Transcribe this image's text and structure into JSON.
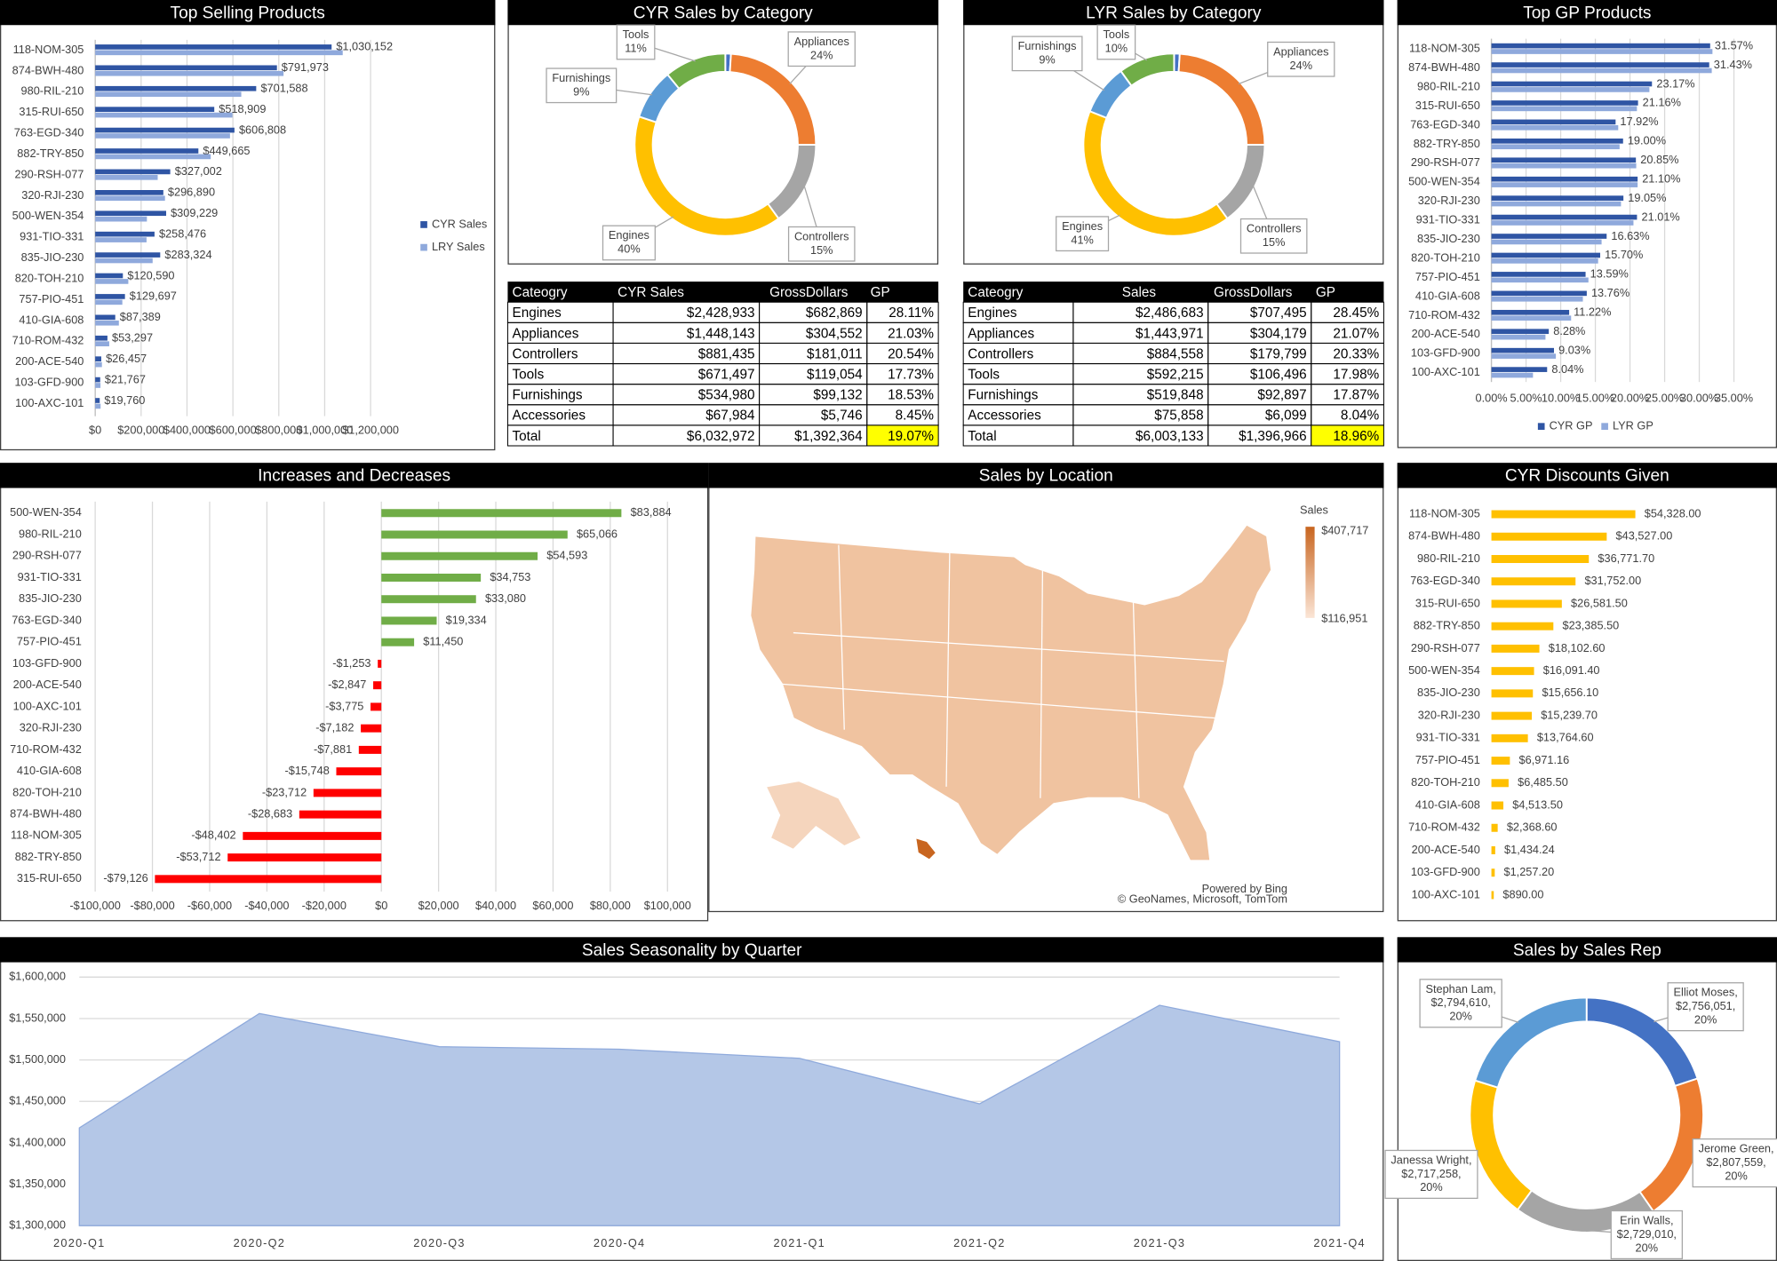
{
  "chart_data": [
    {
      "type": "bar",
      "orientation": "horizontal",
      "title": "Top Selling Products",
      "categories": [
        "118-NOM-305",
        "874-BWH-480",
        "980-RIL-210",
        "315-RUI-650",
        "763-EGD-340",
        "882-TRY-850",
        "290-RSH-077",
        "320-RJI-230",
        "500-WEN-354",
        "931-TIO-331",
        "835-JIO-230",
        "820-TOH-210",
        "757-PIO-451",
        "410-GIA-608",
        "710-ROM-432",
        "200-ACE-540",
        "103-GFD-900",
        "100-AXC-101"
      ],
      "series": [
        {
          "name": "CYR Sales",
          "color": "#2f55a4",
          "values": [
            1030152,
            791973,
            701588,
            518909,
            606808,
            449665,
            327002,
            296890,
            309229,
            258476,
            283324,
            120590,
            129697,
            87389,
            53297,
            26457,
            21767,
            19760
          ],
          "value_labels": [
            "$1,030,152",
            "$791,973",
            "$701,588",
            "$518,909",
            "$606,808",
            "$449,665",
            "$327,002",
            "$296,890",
            "$309,229",
            "$258,476",
            "$283,324",
            "$120,590",
            "$129,697",
            "$87,389",
            "$53,297",
            "$26,457",
            "$21,767",
            "$19,760"
          ]
        },
        {
          "name": "LRY Sales",
          "color": "#8fa9dc",
          "values": [
            1078554,
            820656,
            636522,
            598035,
            587474,
            503377,
            272409,
            304072,
            225345,
            223723,
            250244,
            144302,
            118247,
            103137,
            61178,
            29304,
            23020,
            23535
          ]
        }
      ],
      "xlim": [
        0,
        1200000
      ],
      "xticks": [
        {
          "value": 0,
          "label": "$0"
        },
        {
          "value": 200000,
          "label": "$200,000"
        },
        {
          "value": 400000,
          "label": "$400,000"
        },
        {
          "value": 600000,
          "label": "$600,000"
        },
        {
          "value": 800000,
          "label": "$800,000"
        },
        {
          "value": 1000000,
          "label": "$1,000,000"
        },
        {
          "value": 1200000,
          "label": "$1,200,000"
        }
      ],
      "grid": true,
      "legend": "right"
    },
    {
      "type": "pie",
      "donut": true,
      "title": "CYR Sales by Category",
      "categories": [
        null,
        "Appliances",
        "Controllers",
        "Engines",
        "Furnishings",
        "Tools"
      ],
      "values": [
        1,
        24,
        15,
        40,
        9,
        11
      ],
      "value_labels": [
        null,
        "24%",
        "15%",
        "40%",
        "9%",
        "11%"
      ],
      "colors": [
        "#4472c4",
        "#ed7d31",
        "#a5a5a5",
        "#ffc000",
        "#5b9bd5",
        "#70ad47"
      ]
    },
    {
      "type": "pie",
      "donut": true,
      "title": "LYR Sales by Category",
      "categories": [
        null,
        "Appliances",
        "Controllers",
        "Engines",
        "Furnishings",
        "Tools"
      ],
      "values": [
        1,
        24,
        15,
        41,
        9,
        10
      ],
      "value_labels": [
        null,
        "24%",
        "15%",
        "41%",
        "9%",
        "10%"
      ],
      "colors": [
        "#4472c4",
        "#ed7d31",
        "#a5a5a5",
        "#ffc000",
        "#5b9bd5",
        "#70ad47"
      ]
    },
    {
      "type": "bar",
      "orientation": "horizontal",
      "title": "Top GP Products",
      "categories": [
        "118-NOM-305",
        "874-BWH-480",
        "980-RIL-210",
        "315-RUI-650",
        "763-EGD-340",
        "882-TRY-850",
        "290-RSH-077",
        "500-WEN-354",
        "320-RJI-230",
        "931-TIO-331",
        "835-JIO-230",
        "820-TOH-210",
        "757-PIO-451",
        "410-GIA-608",
        "710-ROM-432",
        "200-ACE-540",
        "103-GFD-900",
        "100-AXC-101"
      ],
      "series": [
        {
          "name": "CYR GP",
          "color": "#2f55a4",
          "values": [
            31.57,
            31.43,
            23.17,
            21.16,
            17.92,
            19.0,
            20.85,
            21.1,
            19.05,
            21.01,
            16.63,
            15.7,
            13.59,
            13.76,
            11.22,
            8.28,
            9.03,
            8.04
          ],
          "value_labels": [
            "31.57%",
            "31.43%",
            "23.17%",
            "21.16%",
            "17.92%",
            "19.00%",
            "20.85%",
            "21.10%",
            "19.05%",
            "21.01%",
            "16.63%",
            "15.70%",
            "13.59%",
            "13.76%",
            "11.22%",
            "8.28%",
            "9.03%",
            "8.04%"
          ]
        },
        {
          "name": "LYR GP",
          "color": "#8fa9dc",
          "values": [
            31.9,
            31.8,
            22.8,
            21.0,
            18.3,
            18.5,
            20.9,
            21.1,
            18.7,
            20.5,
            15.9,
            15.4,
            14.0,
            13.2,
            11.5,
            7.8,
            9.3,
            6.0
          ]
        }
      ],
      "xlim": [
        0,
        35
      ],
      "xticks": [
        {
          "value": 0,
          "label": "0.00%"
        },
        {
          "value": 5,
          "label": "5.00%"
        },
        {
          "value": 10,
          "label": "10.00%"
        },
        {
          "value": 15,
          "label": "15.00%"
        },
        {
          "value": 20,
          "label": "20.00%"
        },
        {
          "value": 25,
          "label": "25.00%"
        },
        {
          "value": 30,
          "label": "30.00%"
        },
        {
          "value": 35,
          "label": "35.00%"
        }
      ],
      "grid": true,
      "legend": "bottom"
    },
    {
      "type": "bar",
      "orientation": "horizontal",
      "title": "Increases and Decreases",
      "categories": [
        "500-WEN-354",
        "980-RIL-210",
        "290-RSH-077",
        "931-TIO-331",
        "835-JIO-230",
        "763-EGD-340",
        "757-PIO-451",
        "103-GFD-900",
        "200-ACE-540",
        "100-AXC-101",
        "320-RJI-230",
        "710-ROM-432",
        "410-GIA-608",
        "820-TOH-210",
        "874-BWH-480",
        "118-NOM-305",
        "882-TRY-850",
        "315-RUI-650"
      ],
      "values": [
        83884,
        65066,
        54593,
        34753,
        33080,
        19334,
        11450,
        -1253,
        -2847,
        -3775,
        -7182,
        -7881,
        -15748,
        -23712,
        -28683,
        -48402,
        -53712,
        -79126
      ],
      "value_labels": [
        "$83,884",
        "$65,066",
        "$54,593",
        "$34,753",
        "$33,080",
        "$19,334",
        "$11,450",
        "-$1,253",
        "-$2,847",
        "-$3,775",
        "-$7,182",
        "-$7,881",
        "-$15,748",
        "-$23,712",
        "-$28,683",
        "-$48,402",
        "-$53,712",
        "-$79,126"
      ],
      "positive_color": "#70ad47",
      "negative_color": "#ff0000",
      "xlim": [
        -100000,
        100000
      ],
      "xticks": [
        {
          "value": -100000,
          "label": "-$100,000"
        },
        {
          "value": -80000,
          "label": "-$80,000"
        },
        {
          "value": -60000,
          "label": "-$60,000"
        },
        {
          "value": -40000,
          "label": "-$40,000"
        },
        {
          "value": -20000,
          "label": "-$20,000"
        },
        {
          "value": 0,
          "label": "$0"
        },
        {
          "value": 20000,
          "label": "$20,000"
        },
        {
          "value": 40000,
          "label": "$40,000"
        },
        {
          "value": 60000,
          "label": "$60,000"
        },
        {
          "value": 80000,
          "label": "$80,000"
        },
        {
          "value": 100000,
          "label": "$100,000"
        }
      ],
      "grid": true
    },
    {
      "type": "map",
      "title": "Sales by Location",
      "legend_title": "Sales",
      "max": 407717,
      "max_label": "$407,717",
      "max_color": "#c8651f",
      "min": 116951,
      "min_label": "$116,951",
      "min_color": "#fbe5d6",
      "credits": [
        "Powered by Bing",
        "© GeoNames, Microsoft, TomTom"
      ]
    },
    {
      "type": "bar",
      "orientation": "horizontal",
      "title": "CYR Discounts Given",
      "categories": [
        "118-NOM-305",
        "874-BWH-480",
        "980-RIL-210",
        "763-EGD-340",
        "315-RUI-650",
        "882-TRY-850",
        "290-RSH-077",
        "500-WEN-354",
        "835-JIO-230",
        "320-RJI-230",
        "931-TIO-331",
        "757-PIO-451",
        "820-TOH-210",
        "410-GIA-608",
        "710-ROM-432",
        "200-ACE-540",
        "103-GFD-900",
        "100-AXC-101"
      ],
      "values": [
        54328,
        43527,
        36771.7,
        31752,
        26581.5,
        23385.5,
        18102.6,
        16091.4,
        15656.1,
        15239.7,
        13764.6,
        6971.16,
        6485.5,
        4513.5,
        2368.6,
        1434.24,
        1257.2,
        890
      ],
      "value_labels": [
        "$54,328.00",
        "$43,527.00",
        "$36,771.70",
        "$31,752.00",
        "$26,581.50",
        "$23,385.50",
        "$18,102.60",
        "$16,091.40",
        "$15,656.10",
        "$15,239.70",
        "$13,764.60",
        "$6,971.16",
        "$6,485.50",
        "$4,513.50",
        "$2,368.60",
        "$1,434.24",
        "$1,257.20",
        "$890.00"
      ],
      "color": "#ffc000"
    },
    {
      "type": "area",
      "title": "Sales Seasonality by Quarter",
      "categories": [
        "2020-Q1",
        "2020-Q2",
        "2020-Q3",
        "2020-Q4",
        "2021-Q1",
        "2021-Q2",
        "2021-Q3",
        "2021-Q4"
      ],
      "values": [
        1418000,
        1556000,
        1516000,
        1513000,
        1502000,
        1447000,
        1566000,
        1522000
      ],
      "color": "#b4c7e7",
      "line_color": "#8faadc",
      "ylim": [
        1300000,
        1600000
      ],
      "yticks": [
        {
          "value": 1300000,
          "label": "$1,300,000"
        },
        {
          "value": 1350000,
          "label": "$1,350,000"
        },
        {
          "value": 1400000,
          "label": "$1,400,000"
        },
        {
          "value": 1450000,
          "label": "$1,450,000"
        },
        {
          "value": 1500000,
          "label": "$1,500,000"
        },
        {
          "value": 1550000,
          "label": "$1,550,000"
        },
        {
          "value": 1600000,
          "label": "$1,600,000"
        }
      ],
      "grid": true
    },
    {
      "type": "pie",
      "donut": true,
      "title": "Sales by Sales Rep",
      "categories": [
        "Elliot Moses,",
        "Jerome Green,",
        "Erin Walls,",
        "Janessa Wright,",
        "Stephan Lam,"
      ],
      "values": [
        2756051,
        2807559,
        2729010,
        2717258,
        2794610
      ],
      "value_labels": [
        "$2,756,051,",
        "$2,807,559,",
        "$2,729,010,",
        "$2,717,258,",
        "$2,794,610,"
      ],
      "percents": [
        20,
        20,
        20,
        20,
        20
      ],
      "percent_labels": [
        "20%",
        "20%",
        "20%",
        "20%",
        "20%"
      ],
      "colors": [
        "#4472c4",
        "#ed7d31",
        "#a5a5a5",
        "#ffc000",
        "#5b9bd5"
      ]
    }
  ],
  "tables": [
    {
      "header": [
        "Cateogry",
        "CYR Sales",
        "GrossDollars",
        "GP"
      ],
      "rows": [
        [
          "Engines",
          "$2,428,933",
          "$682,869",
          "28.11%"
        ],
        [
          "Appliances",
          "$1,448,143",
          "$304,552",
          "21.03%"
        ],
        [
          "Controllers",
          "$881,435",
          "$181,011",
          "20.54%"
        ],
        [
          "Tools",
          "$671,497",
          "$119,054",
          "17.73%"
        ],
        [
          "Furnishings",
          "$534,980",
          "$99,132",
          "18.53%"
        ],
        [
          "Accessories",
          "$67,984",
          "$5,746",
          "8.45%"
        ],
        [
          "Total",
          "$6,032,972",
          "$1,392,364",
          "19.07%"
        ]
      ]
    },
    {
      "header": [
        "Cateogry",
        "Sales",
        "GrossDollars",
        "GP"
      ],
      "rows": [
        [
          "Engines",
          "$2,486,683",
          "$707,495",
          "28.45%"
        ],
        [
          "Appliances",
          "$1,443,971",
          "$304,179",
          "21.07%"
        ],
        [
          "Controllers",
          "$884,558",
          "$179,799",
          "20.33%"
        ],
        [
          "Tools",
          "$592,215",
          "$106,496",
          "17.98%"
        ],
        [
          "Furnishings",
          "$519,848",
          "$92,897",
          "17.87%"
        ],
        [
          "Accessories",
          "$75,858",
          "$6,099",
          "8.04%"
        ],
        [
          "Total",
          "$6,003,133",
          "$1,396,966",
          "18.96%"
        ]
      ]
    }
  ]
}
